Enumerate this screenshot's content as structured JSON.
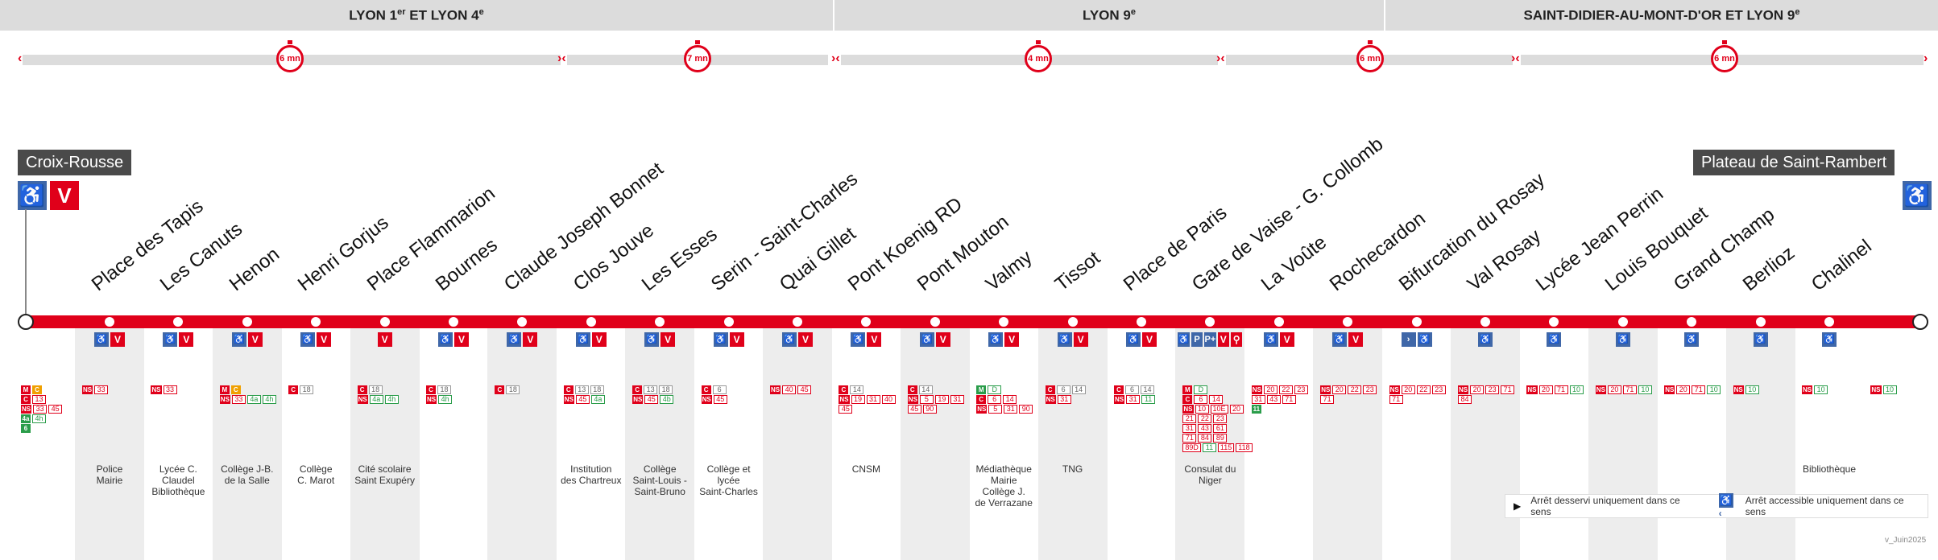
{
  "zones": [
    {
      "label": "LYON 1er ET LYON 4e"
    },
    {
      "label": "LYON 9e"
    },
    {
      "label": "SAINT-DIDIER-AU-MONT-D'OR ET LYON 9e"
    }
  ],
  "timers": [
    "6 mn",
    "7 mn",
    "4 mn",
    "6 mn",
    "6 mn"
  ],
  "termini": {
    "left": "Croix-Rousse",
    "right": "Plateau de Saint-Rambert"
  },
  "stops": [
    {
      "name": "Place des Tapis",
      "poi": "Police\nMairie",
      "icons": [
        "acc",
        "v"
      ]
    },
    {
      "name": "Les Canuts",
      "poi": "Lycée C. Claudel\nBibliothèque",
      "icons": [
        "acc",
        "v"
      ]
    },
    {
      "name": "Henon",
      "poi": "Collège J-B.\nde la Salle",
      "icons": [
        "acc",
        "v"
      ]
    },
    {
      "name": "Henri Gorjus",
      "poi": "Collège\nC. Marot",
      "icons": [
        "acc",
        "v"
      ]
    },
    {
      "name": "Place Flammarion",
      "poi": "Cité scolaire\nSaint Exupéry",
      "icons": [
        "v"
      ]
    },
    {
      "name": "Bournes",
      "poi": "",
      "icons": [
        "acc",
        "v"
      ]
    },
    {
      "name": "Claude Joseph Bonnet",
      "poi": "",
      "icons": [
        "acc",
        "v"
      ]
    },
    {
      "name": "Clos Jouve",
      "poi": "Institution\ndes Chartreux",
      "icons": [
        "acc",
        "v"
      ]
    },
    {
      "name": "Les Esses",
      "poi": "Collège\nSaint-Louis -\nSaint-Bruno",
      "icons": [
        "acc",
        "v"
      ]
    },
    {
      "name": "Serin - Saint-Charles",
      "poi": "Collège et\nlycée\nSaint-Charles",
      "icons": [
        "acc",
        "v"
      ]
    },
    {
      "name": "Quai Gillet",
      "poi": "",
      "icons": [
        "acc",
        "v"
      ]
    },
    {
      "name": "Pont Koenig RD",
      "poi": "CNSM",
      "icons": [
        "acc",
        "v"
      ]
    },
    {
      "name": "Pont Mouton",
      "poi": "",
      "icons": [
        "acc",
        "v"
      ]
    },
    {
      "name": "Valmy",
      "poi": "Médiathèque\nMairie\nCollège J.\nde Verrazane",
      "icons": [
        "acc",
        "v"
      ]
    },
    {
      "name": "Tissot",
      "poi": "TNG",
      "icons": [
        "acc",
        "v"
      ]
    },
    {
      "name": "Place de Paris",
      "poi": "",
      "icons": [
        "acc",
        "v"
      ]
    },
    {
      "name": "Gare de Vaise - G. Collomb",
      "poi": "Consulat du\nNiger",
      "icons": [
        "acc",
        "p",
        "pr",
        "v",
        "bike"
      ]
    },
    {
      "name": "La Voûte",
      "poi": "",
      "icons": [
        "acc",
        "v"
      ]
    },
    {
      "name": "Rochecardon",
      "poi": "",
      "icons": [
        "acc",
        "v"
      ]
    },
    {
      "name": "Bifurcation du Rosay",
      "poi": "",
      "icons": [
        "dir",
        "acc"
      ]
    },
    {
      "name": "Val Rosay",
      "poi": "",
      "icons": [
        "acc"
      ]
    },
    {
      "name": "Lycée Jean Perrin",
      "poi": "",
      "icons": [
        "acc"
      ]
    },
    {
      "name": "Louis Bouquet",
      "poi": "",
      "icons": [
        "acc"
      ]
    },
    {
      "name": "Grand Champ",
      "poi": "",
      "icons": [
        "acc"
      ]
    },
    {
      "name": "Berlioz",
      "poi": "",
      "icons": [
        "acc"
      ]
    },
    {
      "name": "Chalinel",
      "poi": "Bibliothèque",
      "icons": [
        "acc"
      ]
    }
  ],
  "connections": [
    {
      "col": -1,
      "rows": [
        [
          "M|m",
          "C|ms"
        ],
        [
          "C|c",
          "13"
        ],
        [
          "NS|ns",
          "33",
          "45"
        ],
        [
          "4a|g",
          "4h|g"
        ],
        [
          "6|g"
        ]
      ]
    },
    {
      "col": 0,
      "rows": [
        [
          "NS|ns",
          "33"
        ]
      ]
    },
    {
      "col": 1,
      "rows": [
        [
          "NS|ns",
          "33"
        ]
      ]
    },
    {
      "col": 2,
      "rows": [
        [
          "M|m",
          "C|ms"
        ],
        [
          "NS|ns",
          "33",
          "4a|g",
          "4h|g"
        ]
      ]
    },
    {
      "col": 3,
      "rows": [
        [
          "C|c",
          "18"
        ]
      ]
    },
    {
      "col": 4,
      "rows": [
        [
          "C|c",
          "18"
        ],
        [
          "NS|ns",
          "4a|g",
          "4h|g"
        ]
      ]
    },
    {
      "col": 5,
      "rows": [
        [
          "C|c",
          "18"
        ],
        [
          "NS|ns",
          "4h|g"
        ]
      ]
    },
    {
      "col": 6,
      "rows": [
        [
          "C|c",
          "18"
        ]
      ]
    },
    {
      "col": 7,
      "rows": [
        [
          "C|c",
          "13",
          "18"
        ],
        [
          "NS|ns",
          "45",
          "4a|g"
        ]
      ]
    },
    {
      "col": 8,
      "rows": [
        [
          "C|c",
          "13",
          "18"
        ],
        [
          "NS|ns",
          "45",
          "4b|g"
        ]
      ]
    },
    {
      "col": 9,
      "rows": [
        [
          "C|c",
          "6"
        ],
        [
          "NS|ns",
          "45"
        ]
      ]
    },
    {
      "col": 10,
      "rows": [
        [
          "NS|ns",
          "40",
          "45"
        ]
      ]
    },
    {
      "col": 11,
      "rows": [
        [
          "C|c",
          "14"
        ],
        [
          "NS|ns",
          "19",
          "31",
          "40"
        ],
        [
          "45"
        ]
      ]
    },
    {
      "col": 12,
      "rows": [
        [
          "C|c",
          "14"
        ],
        [
          "NS|ns",
          "5",
          "19",
          "31"
        ],
        [
          "45",
          "90"
        ]
      ]
    },
    {
      "col": 13,
      "rows": [
        [
          "M|g",
          "D|g"
        ],
        [
          "C|c",
          "6",
          "14"
        ],
        [
          "NS|ns",
          "5",
          "31",
          "90"
        ]
      ]
    },
    {
      "col": 14,
      "rows": [
        [
          "C|c",
          "6",
          "14"
        ],
        [
          "NS|ns",
          "31"
        ]
      ]
    },
    {
      "col": 15,
      "rows": [
        [
          "C|c",
          "6",
          "14"
        ],
        [
          "NS|ns",
          "31",
          "11|g"
        ]
      ]
    },
    {
      "col": 16,
      "rows": [
        [
          "M|m",
          "D|g"
        ],
        [
          "C|c",
          "6",
          "14"
        ],
        [
          "NS|ns",
          "10",
          "10E",
          "20"
        ],
        [
          "21",
          "22",
          "23"
        ],
        [
          "31",
          "43",
          "61"
        ],
        [
          "71",
          "84",
          "89"
        ],
        [
          "89D",
          "11|g",
          "115",
          "118"
        ]
      ]
    },
    {
      "col": 17,
      "rows": [
        [
          "NS|ns",
          "20",
          "22",
          "23"
        ],
        [
          "31",
          "43",
          "71"
        ],
        [
          "11|g"
        ]
      ]
    },
    {
      "col": 18,
      "rows": [
        [
          "NS|ns",
          "20",
          "22",
          "23"
        ],
        [
          "71"
        ]
      ]
    },
    {
      "col": 19,
      "rows": [
        [
          "NS|ns",
          "20",
          "22",
          "23"
        ],
        [
          "71"
        ]
      ]
    },
    {
      "col": 20,
      "rows": [
        [
          "NS|ns",
          "20",
          "23",
          "71"
        ],
        [
          "84"
        ]
      ]
    },
    {
      "col": 21,
      "rows": [
        [
          "NS|ns",
          "20",
          "71",
          "10|g"
        ]
      ]
    },
    {
      "col": 22,
      "rows": [
        [
          "NS|ns",
          "20",
          "71",
          "10|g"
        ]
      ]
    },
    {
      "col": 23,
      "rows": [
        [
          "NS|ns",
          "20",
          "71",
          "10|g"
        ]
      ]
    },
    {
      "col": 24,
      "rows": [
        [
          "NS|ns",
          "10|g"
        ]
      ]
    },
    {
      "col": 25,
      "rows": [
        [
          "NS|ns",
          "10|g"
        ]
      ]
    },
    {
      "col": 26,
      "rows": [
        [
          "NS|ns",
          "10|g"
        ]
      ]
    }
  ],
  "legend": {
    "one_way": "Arrêt desservi uniquement dans ce sens",
    "accessible_one_way": "Arrêt accessible uniquement dans ce sens"
  },
  "version": "v_Juin2025",
  "colors": {
    "line": "#e0001a",
    "accessibility": "#3f67a8",
    "zone": "#dcdcdc"
  }
}
